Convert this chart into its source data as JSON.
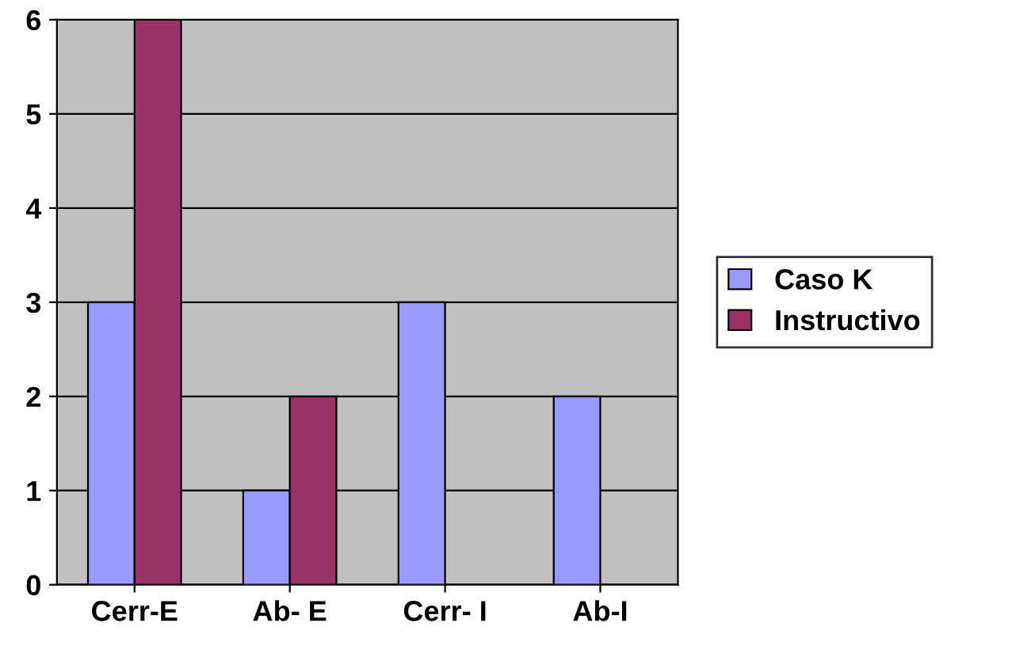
{
  "chart_data": {
    "type": "bar",
    "categories": [
      "Cerr-E",
      "Ab- E",
      "Cerr- I",
      "Ab-I"
    ],
    "series": [
      {
        "name": "Caso K",
        "color": "#9999ff",
        "values": [
          3,
          1,
          3,
          2
        ]
      },
      {
        "name": "Instructivo",
        "color": "#993366",
        "values": [
          6,
          2,
          null,
          null
        ]
      }
    ],
    "ylim": [
      0,
      6
    ],
    "yticks": [
      0,
      1,
      2,
      3,
      4,
      5,
      6
    ],
    "grid": "y",
    "legend": "right"
  }
}
